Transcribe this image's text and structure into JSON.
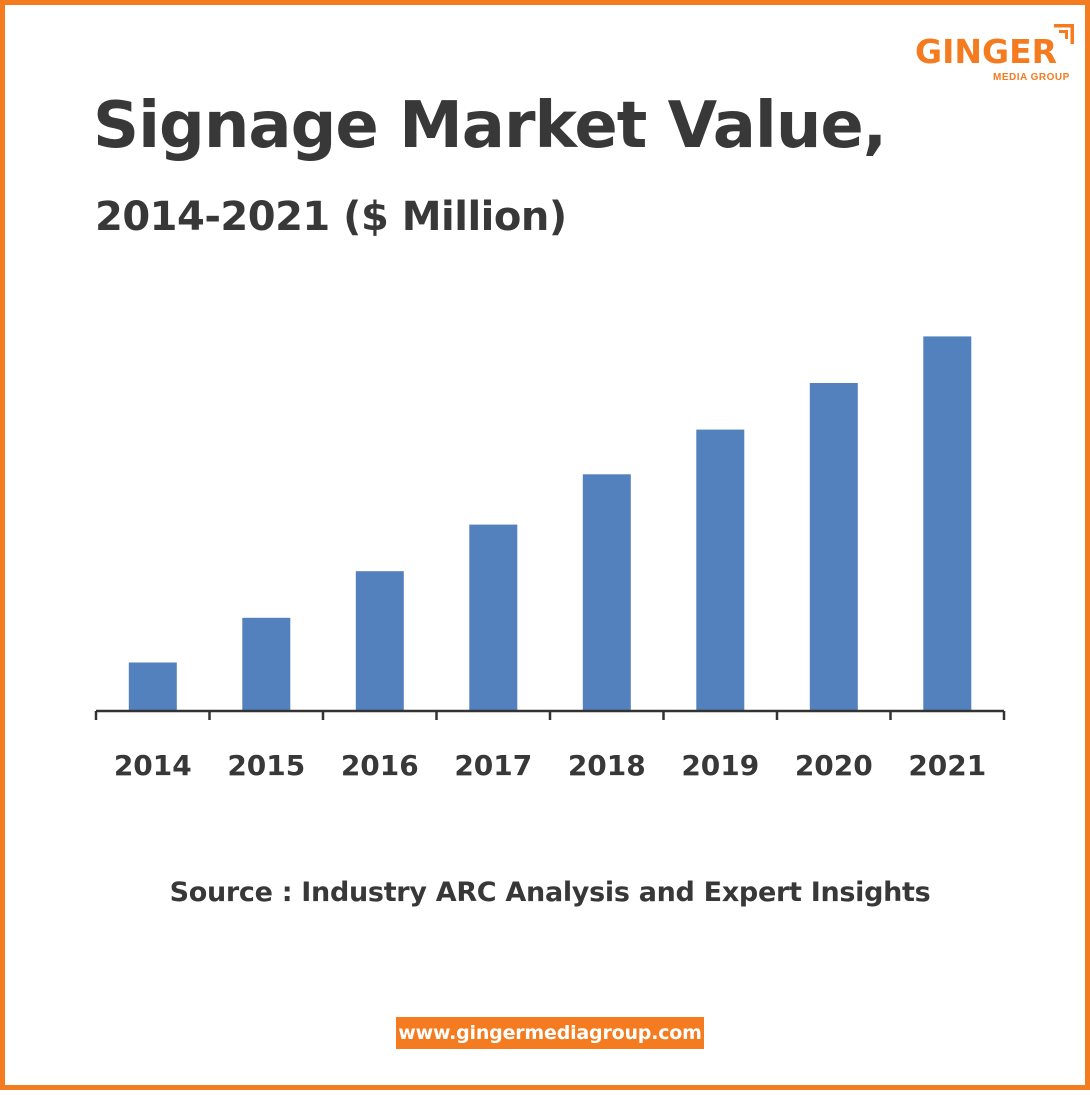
{
  "brand": {
    "name": "GINGER",
    "tagline": "MEDIA GROUP",
    "accent_color": "#f47b20",
    "website": "www.gingermediagroup.com"
  },
  "header": {
    "title": "Signage Market Value,",
    "subtitle": "2014-2021 ($ Million)"
  },
  "footer": {
    "source": "Source : Industry ARC Analysis and Expert Insights"
  },
  "chart_data": {
    "type": "bar",
    "title": "Signage Market Value, 2014-2021 ($ Million)",
    "categories": [
      "2014",
      "2015",
      "2016",
      "2017",
      "2018",
      "2019",
      "2020",
      "2021"
    ],
    "values": [
      13,
      25,
      37.5,
      50,
      63.5,
      75.5,
      88,
      100.5
    ],
    "ylim": [
      0,
      110
    ],
    "grid": false,
    "legend": "none",
    "bar_color": "#5381bd",
    "axis_color": "#333333"
  }
}
